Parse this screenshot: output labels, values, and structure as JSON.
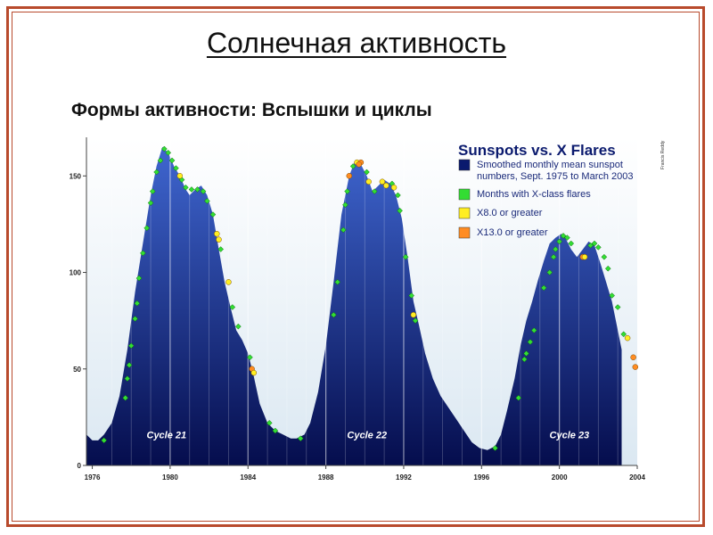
{
  "slide": {
    "title": "Солнечная активность",
    "subtitle": "Формы активности: Вспышки и циклы"
  },
  "chart_data": {
    "type": "area",
    "title": "Sunspots vs. X Flares",
    "credit": "Francis Reddy",
    "legend": [
      {
        "label": "Smoothed monthly mean sunspot",
        "label2": "numbers, Sept. 1975 to March 2003",
        "color": "#0a1a6e"
      },
      {
        "label": "Months with X-class flares",
        "label2": "",
        "color": "#33dd33"
      },
      {
        "label": "X8.0 or greater",
        "label2": "",
        "color": "#ffee22"
      },
      {
        "label": "X13.0 or greater",
        "label2": "",
        "color": "#ff8c22"
      }
    ],
    "xlim": [
      1975.7,
      2004
    ],
    "ylim": [
      0,
      170
    ],
    "x_ticks": [
      1976,
      1980,
      1984,
      1988,
      1992,
      1996,
      2000,
      2004
    ],
    "y_ticks": [
      0,
      50,
      100,
      150
    ],
    "cycle_labels": [
      {
        "text": "Cycle 21",
        "x": 1976.7
      },
      {
        "text": "Cycle 22",
        "x": 1987
      },
      {
        "text": "Cycle 23",
        "x": 1997.4
      }
    ],
    "series": {
      "x": [
        1975.7,
        1976.0,
        1976.3,
        1976.6,
        1977.0,
        1977.4,
        1977.8,
        1978.2,
        1978.6,
        1979.0,
        1979.3,
        1979.6,
        1979.9,
        1980.2,
        1980.5,
        1980.8,
        1981.0,
        1981.3,
        1981.6,
        1981.9,
        1982.2,
        1982.5,
        1982.8,
        1983.1,
        1983.4,
        1983.7,
        1984.0,
        1984.3,
        1984.6,
        1985.0,
        1985.4,
        1985.8,
        1986.2,
        1986.5,
        1986.9,
        1987.2,
        1987.6,
        1988.0,
        1988.4,
        1988.8,
        1989.2,
        1989.5,
        1989.8,
        1990.1,
        1990.4,
        1990.7,
        1991.0,
        1991.3,
        1991.6,
        1991.9,
        1992.2,
        1992.5,
        1992.8,
        1993.1,
        1993.5,
        1993.9,
        1994.3,
        1994.7,
        1995.1,
        1995.5,
        1995.9,
        1996.3,
        1996.7,
        1997.0,
        1997.3,
        1997.7,
        1998.0,
        1998.3,
        1998.6,
        1998.9,
        1999.2,
        1999.5,
        1999.8,
        2000.1,
        2000.3,
        2000.6,
        2000.9,
        2001.2,
        2001.5,
        2001.8,
        2002.1,
        2002.4,
        2002.7,
        2003.0,
        2003.2
      ],
      "y": [
        16,
        13,
        13,
        16,
        22,
        36,
        60,
        90,
        115,
        140,
        155,
        165,
        162,
        155,
        150,
        143,
        140,
        143,
        145,
        140,
        130,
        112,
        95,
        82,
        70,
        65,
        58,
        46,
        32,
        22,
        18,
        16,
        14,
        14,
        16,
        22,
        38,
        62,
        95,
        130,
        150,
        158,
        156,
        150,
        142,
        145,
        148,
        146,
        140,
        128,
        108,
        85,
        72,
        58,
        45,
        36,
        30,
        24,
        18,
        12,
        9,
        8,
        10,
        16,
        28,
        45,
        62,
        75,
        85,
        96,
        106,
        115,
        118,
        120,
        118,
        112,
        108,
        112,
        116,
        114,
        105,
        95,
        85,
        70,
        60
      ]
    },
    "flare_markers": [
      {
        "x": 1976.6,
        "y": 13,
        "type": "x"
      },
      {
        "x": 1977.7,
        "y": 35,
        "type": "x"
      },
      {
        "x": 1977.8,
        "y": 45,
        "type": "x"
      },
      {
        "x": 1977.9,
        "y": 52,
        "type": "x"
      },
      {
        "x": 1978.0,
        "y": 62,
        "type": "x"
      },
      {
        "x": 1978.2,
        "y": 76,
        "type": "x"
      },
      {
        "x": 1978.3,
        "y": 84,
        "type": "x"
      },
      {
        "x": 1978.4,
        "y": 97,
        "type": "x"
      },
      {
        "x": 1978.6,
        "y": 110,
        "type": "x"
      },
      {
        "x": 1978.8,
        "y": 123,
        "type": "x"
      },
      {
        "x": 1979.0,
        "y": 136,
        "type": "x"
      },
      {
        "x": 1979.1,
        "y": 142,
        "type": "x"
      },
      {
        "x": 1979.3,
        "y": 152,
        "type": "x"
      },
      {
        "x": 1979.5,
        "y": 158,
        "type": "x"
      },
      {
        "x": 1979.7,
        "y": 164,
        "type": "x"
      },
      {
        "x": 1979.9,
        "y": 162,
        "type": "x"
      },
      {
        "x": 1980.1,
        "y": 158,
        "type": "x"
      },
      {
        "x": 1980.3,
        "y": 154,
        "type": "x"
      },
      {
        "x": 1980.6,
        "y": 148,
        "type": "x"
      },
      {
        "x": 1980.8,
        "y": 144,
        "type": "x"
      },
      {
        "x": 1981.1,
        "y": 143,
        "type": "x"
      },
      {
        "x": 1981.4,
        "y": 143,
        "type": "x"
      },
      {
        "x": 1981.7,
        "y": 142,
        "type": "x"
      },
      {
        "x": 1981.9,
        "y": 137,
        "type": "x"
      },
      {
        "x": 1980.5,
        "y": 150,
        "type": "x8"
      },
      {
        "x": 1982.4,
        "y": 120,
        "type": "x8"
      },
      {
        "x": 1982.5,
        "y": 117,
        "type": "x8"
      },
      {
        "x": 1982.2,
        "y": 130,
        "type": "x"
      },
      {
        "x": 1982.6,
        "y": 112,
        "type": "x"
      },
      {
        "x": 1983.0,
        "y": 95,
        "type": "x8"
      },
      {
        "x": 1983.2,
        "y": 82,
        "type": "x"
      },
      {
        "x": 1983.5,
        "y": 72,
        "type": "x"
      },
      {
        "x": 1984.1,
        "y": 56,
        "type": "x"
      },
      {
        "x": 1984.2,
        "y": 50,
        "type": "x13"
      },
      {
        "x": 1984.3,
        "y": 48,
        "type": "x8"
      },
      {
        "x": 1985.1,
        "y": 22,
        "type": "x"
      },
      {
        "x": 1985.4,
        "y": 18,
        "type": "x"
      },
      {
        "x": 1986.7,
        "y": 14,
        "type": "x"
      },
      {
        "x": 1988.4,
        "y": 78,
        "type": "x"
      },
      {
        "x": 1988.6,
        "y": 95,
        "type": "x"
      },
      {
        "x": 1988.9,
        "y": 122,
        "type": "x"
      },
      {
        "x": 1989.0,
        "y": 135,
        "type": "x"
      },
      {
        "x": 1989.1,
        "y": 142,
        "type": "x"
      },
      {
        "x": 1989.2,
        "y": 150,
        "type": "x"
      },
      {
        "x": 1989.4,
        "y": 155,
        "type": "x"
      },
      {
        "x": 1989.2,
        "y": 150,
        "type": "x13"
      },
      {
        "x": 1989.6,
        "y": 157,
        "type": "x8"
      },
      {
        "x": 1989.8,
        "y": 157,
        "type": "x13"
      },
      {
        "x": 1989.7,
        "y": 156,
        "type": "x13"
      },
      {
        "x": 1990.1,
        "y": 152,
        "type": "x"
      },
      {
        "x": 1990.2,
        "y": 147,
        "type": "x8"
      },
      {
        "x": 1990.5,
        "y": 142,
        "type": "x"
      },
      {
        "x": 1990.9,
        "y": 147,
        "type": "x8"
      },
      {
        "x": 1991.1,
        "y": 145,
        "type": "x8"
      },
      {
        "x": 1991.4,
        "y": 146,
        "type": "x"
      },
      {
        "x": 1991.5,
        "y": 144,
        "type": "x8"
      },
      {
        "x": 1991.7,
        "y": 140,
        "type": "x"
      },
      {
        "x": 1991.8,
        "y": 132,
        "type": "x"
      },
      {
        "x": 1992.1,
        "y": 108,
        "type": "x"
      },
      {
        "x": 1992.4,
        "y": 88,
        "type": "x"
      },
      {
        "x": 1992.5,
        "y": 78,
        "type": "x8"
      },
      {
        "x": 1992.6,
        "y": 75,
        "type": "x"
      },
      {
        "x": 1996.7,
        "y": 9,
        "type": "x"
      },
      {
        "x": 1997.9,
        "y": 35,
        "type": "x"
      },
      {
        "x": 1998.2,
        "y": 55,
        "type": "x"
      },
      {
        "x": 1998.3,
        "y": 58,
        "type": "x"
      },
      {
        "x": 1998.5,
        "y": 64,
        "type": "x"
      },
      {
        "x": 1998.7,
        "y": 70,
        "type": "x"
      },
      {
        "x": 1999.2,
        "y": 92,
        "type": "x"
      },
      {
        "x": 1999.5,
        "y": 100,
        "type": "x"
      },
      {
        "x": 1999.7,
        "y": 108,
        "type": "x"
      },
      {
        "x": 1999.8,
        "y": 112,
        "type": "x"
      },
      {
        "x": 2000.0,
        "y": 116,
        "type": "x"
      },
      {
        "x": 2000.2,
        "y": 119,
        "type": "x"
      },
      {
        "x": 2000.4,
        "y": 118,
        "type": "x"
      },
      {
        "x": 2000.6,
        "y": 115,
        "type": "x"
      },
      {
        "x": 2001.2,
        "y": 108,
        "type": "x13"
      },
      {
        "x": 2001.3,
        "y": 108,
        "type": "x8"
      },
      {
        "x": 2001.6,
        "y": 114,
        "type": "x"
      },
      {
        "x": 2001.8,
        "y": 115,
        "type": "x"
      },
      {
        "x": 2002.0,
        "y": 113,
        "type": "x"
      },
      {
        "x": 2002.3,
        "y": 108,
        "type": "x"
      },
      {
        "x": 2002.5,
        "y": 102,
        "type": "x"
      },
      {
        "x": 2002.7,
        "y": 88,
        "type": "x"
      },
      {
        "x": 2003.0,
        "y": 82,
        "type": "x"
      },
      {
        "x": 2003.3,
        "y": 68,
        "type": "x"
      },
      {
        "x": 2003.5,
        "y": 66,
        "type": "x8"
      },
      {
        "x": 2003.8,
        "y": 56,
        "type": "x13"
      },
      {
        "x": 2003.9,
        "y": 51,
        "type": "x13"
      }
    ],
    "colors": {
      "background": "#dbe8f2",
      "area_top": "#3f66d0",
      "area_bottom": "#050d4d",
      "x_flare": "#33dd33",
      "x8_flare": "#ffee22",
      "x13_flare": "#ff8c22"
    }
  }
}
